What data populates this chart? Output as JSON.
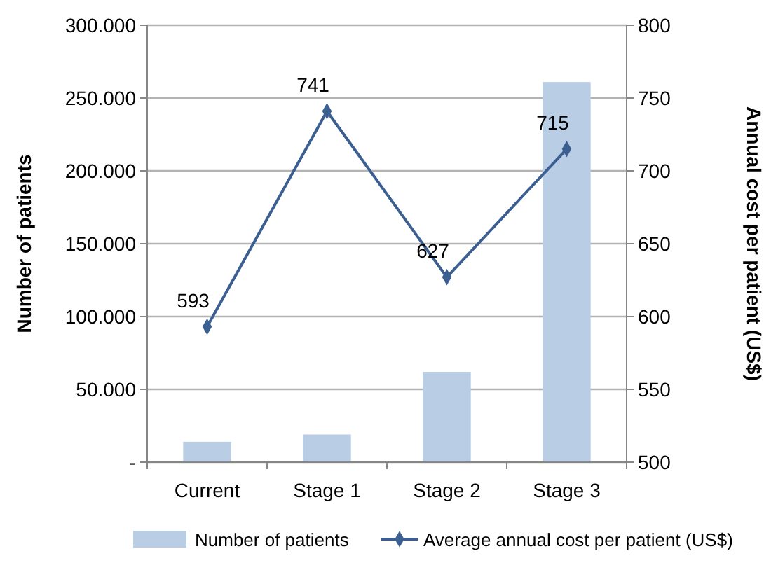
{
  "chart_data": {
    "type": "bar",
    "categories": [
      "Current",
      "Stage 1",
      "Stage 2",
      "Stage 3"
    ],
    "series": [
      {
        "name": "Number of patients",
        "color": "#b9cde5",
        "values": [
          14000,
          19000,
          62000,
          261000
        ]
      },
      {
        "name": "Average annual cost per patient (US$)",
        "type": "line",
        "axis": "y2",
        "color": "#3c5f91",
        "values": [
          593,
          741,
          627,
          715
        ],
        "value_labels": [
          "593",
          "741",
          "627",
          "715"
        ]
      }
    ],
    "ylabel": "Number of patients",
    "y2label": "Annual cost per patient (US$)",
    "ylim": [
      0,
      300000
    ],
    "yticks": [
      {
        "value": 0,
        "label": "-"
      },
      {
        "value": 50000,
        "label": "50.000"
      },
      {
        "value": 100000,
        "label": "100.000"
      },
      {
        "value": 150000,
        "label": "150.000"
      },
      {
        "value": 200000,
        "label": "200.000"
      },
      {
        "value": 250000,
        "label": "250.000"
      },
      {
        "value": 300000,
        "label": "300.000"
      }
    ],
    "y2lim": [
      500,
      800
    ],
    "y2ticks": [
      500,
      550,
      600,
      650,
      700,
      750,
      800
    ],
    "grid": "y",
    "legend": "bottom",
    "marker": "diamond"
  }
}
